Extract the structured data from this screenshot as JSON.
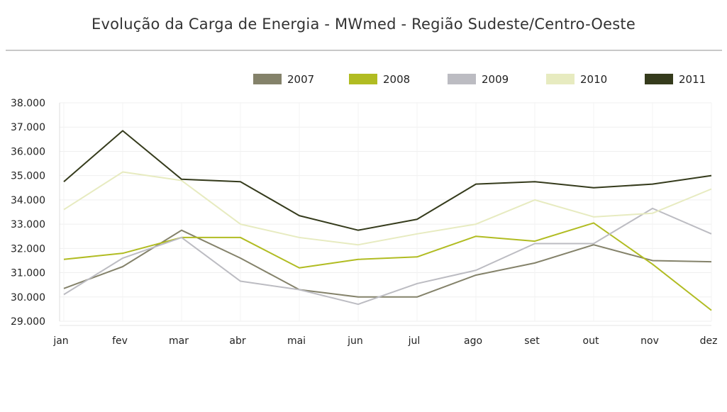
{
  "chart_data": {
    "type": "line",
    "title": "Evolução da Carga de Energia - MWmed - Região Sudeste/Centro-Oeste",
    "xlabel": "",
    "ylabel": "",
    "categories": [
      "jan",
      "fev",
      "mar",
      "abr",
      "mai",
      "jun",
      "jul",
      "ago",
      "set",
      "out",
      "nov",
      "dez"
    ],
    "yticks": [
      "29.000",
      "30.000",
      "31.000",
      "32.000",
      "33.000",
      "34.000",
      "35.000",
      "36.000",
      "37.000",
      "38.000"
    ],
    "ylim": [
      29000,
      38000
    ],
    "grid": true,
    "legend_position": "top-right",
    "series": [
      {
        "name": "2007",
        "color": "#84826a",
        "values": [
          30350,
          31250,
          32750,
          31600,
          30300,
          30000,
          30000,
          30900,
          31400,
          32150,
          31500,
          31450
        ]
      },
      {
        "name": "2008",
        "color": "#b1bc22",
        "values": [
          31550,
          31800,
          32450,
          32450,
          31200,
          31550,
          31650,
          32500,
          32300,
          33050,
          31350,
          29450
        ]
      },
      {
        "name": "2009",
        "color": "#bcbcc2",
        "values": [
          30100,
          31600,
          32450,
          30650,
          30300,
          29700,
          30550,
          31100,
          32200,
          32200,
          33650,
          32600
        ]
      },
      {
        "name": "2010",
        "color": "#e7ebc0",
        "values": [
          33600,
          35150,
          34800,
          33000,
          32450,
          32150,
          32600,
          33000,
          34000,
          33300,
          33450,
          34450
        ]
      },
      {
        "name": "2011",
        "color": "#353b1c",
        "values": [
          34750,
          36850,
          34850,
          34750,
          33350,
          32750,
          33200,
          34650,
          34750,
          34500,
          34650,
          35000
        ]
      }
    ]
  }
}
